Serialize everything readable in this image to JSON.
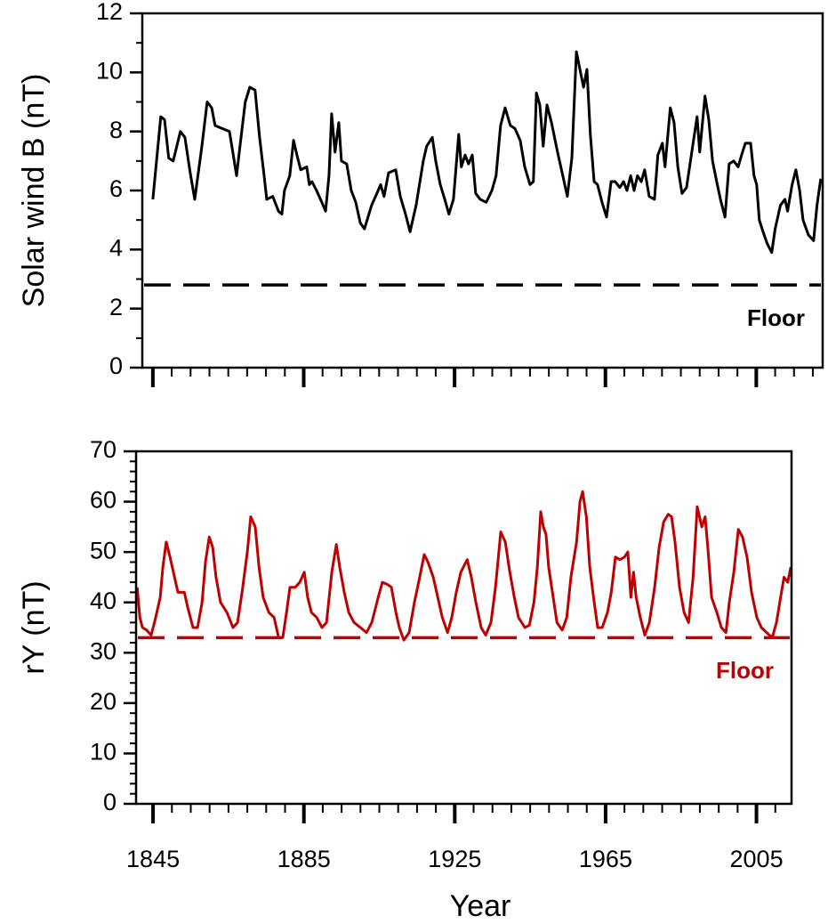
{
  "chart_data": [
    {
      "type": "line",
      "ylabel": "Solar wind B (nT)",
      "color": "#000000",
      "xlim": [
        1842.2,
        2022.6
      ],
      "xticks": [
        1845,
        1885,
        1925,
        1965,
        2005
      ],
      "xticklabels": false,
      "xminor_step": 5,
      "ylim": [
        0,
        12
      ],
      "yticks": [
        0,
        2,
        4,
        6,
        8,
        10,
        12
      ],
      "yminor_step": 1,
      "hline": {
        "value": 2.8,
        "label": "Floor",
        "color": "#000000"
      },
      "x": [
        1845.0,
        1847.1,
        1848.1,
        1849.2,
        1850.4,
        1852.3,
        1853.5,
        1854.9,
        1856.1,
        1858.0,
        1859.4,
        1860.6,
        1861.5,
        1863.4,
        1865.3,
        1866.2,
        1867.2,
        1868.1,
        1869.5,
        1870.7,
        1872.1,
        1873.3,
        1874.5,
        1875.2,
        1876.8,
        1878.3,
        1879.2,
        1879.9,
        1881.3,
        1882.3,
        1883.2,
        1884.2,
        1885.8,
        1886.5,
        1887.2,
        1888.4,
        1889.8,
        1890.8,
        1891.7,
        1892.4,
        1893.3,
        1894.3,
        1895.0,
        1896.4,
        1897.6,
        1898.8,
        1900.0,
        1901.1,
        1903.0,
        1904.4,
        1905.4,
        1906.3,
        1907.5,
        1909.4,
        1910.6,
        1912.0,
        1913.2,
        1914.8,
        1916.7,
        1917.6,
        1919.1,
        1920.0,
        1921.2,
        1922.4,
        1923.5,
        1924.7,
        1926.1,
        1926.8,
        1927.8,
        1928.7,
        1929.7,
        1930.6,
        1931.8,
        1933.4,
        1934.9,
        1936.0,
        1937.2,
        1938.4,
        1939.8,
        1941.0,
        1942.4,
        1943.6,
        1945.0,
        1945.9,
        1946.7,
        1947.6,
        1948.5,
        1949.5,
        1950.7,
        1952.3,
        1953.7,
        1954.9,
        1956.1,
        1957.3,
        1958.4,
        1959.2,
        1960.1,
        1961.0,
        1962.0,
        1962.9,
        1964.1,
        1965.3,
        1966.5,
        1967.6,
        1968.8,
        1969.8,
        1970.7,
        1971.7,
        1972.6,
        1973.5,
        1974.5,
        1975.4,
        1976.6,
        1978.0,
        1978.9,
        1980.1,
        1980.8,
        1982.2,
        1983.2,
        1984.2,
        1985.3,
        1986.5,
        1987.9,
        1989.3,
        1990.0,
        1991.4,
        1992.4,
        1993.4,
        1994.5,
        1995.5,
        1996.7,
        1997.8,
        1999.0,
        2000.2,
        2001.1,
        2002.1,
        2003.5,
        2004.4,
        2005.1,
        2005.8,
        2006.8,
        2007.9,
        2009.1,
        2010.0,
        2011.4,
        2012.6,
        2013.3,
        2014.5,
        2015.5,
        2016.5,
        2017.4,
        2018.8,
        2020.2,
        2021.1,
        2022.1
      ],
      "values": [
        5.7,
        8.5,
        8.4,
        7.1,
        7.0,
        8.0,
        7.8,
        6.6,
        5.7,
        7.5,
        9.0,
        8.8,
        8.2,
        8.1,
        8.0,
        7.3,
        6.5,
        7.5,
        9.0,
        9.5,
        9.4,
        7.8,
        6.5,
        5.7,
        5.8,
        5.3,
        5.2,
        6.0,
        6.5,
        7.7,
        7.2,
        6.7,
        6.8,
        6.2,
        6.3,
        6.0,
        5.6,
        5.3,
        6.5,
        8.6,
        7.3,
        8.3,
        7.0,
        6.9,
        6.0,
        5.6,
        4.9,
        4.7,
        5.5,
        5.9,
        6.2,
        5.8,
        6.6,
        6.7,
        5.8,
        5.2,
        4.6,
        5.5,
        7.0,
        7.5,
        7.8,
        7.0,
        6.2,
        5.7,
        5.2,
        5.7,
        7.9,
        6.8,
        7.2,
        6.9,
        7.2,
        5.9,
        5.7,
        5.6,
        6.0,
        6.5,
        8.2,
        8.8,
        8.2,
        8.1,
        7.7,
        6.8,
        6.2,
        6.3,
        9.3,
        8.9,
        7.5,
        8.9,
        8.3,
        7.3,
        6.5,
        5.8,
        7.1,
        10.7,
        10.0,
        9.5,
        10.1,
        7.9,
        6.3,
        6.2,
        5.6,
        5.1,
        6.3,
        6.3,
        6.1,
        6.3,
        6.0,
        6.5,
        6.0,
        6.5,
        6.3,
        6.7,
        5.8,
        5.7,
        7.2,
        7.6,
        6.8,
        8.8,
        8.3,
        6.8,
        5.9,
        6.1,
        7.3,
        8.5,
        7.3,
        9.2,
        8.4,
        7.0,
        6.3,
        5.7,
        5.1,
        6.9,
        7.0,
        6.8,
        7.2,
        7.6,
        7.6,
        6.5,
        6.2,
        5.0,
        4.6,
        4.2,
        3.9,
        4.7,
        5.5,
        5.7,
        5.3,
        6.2,
        6.7,
        6.0,
        5.0,
        4.5,
        4.3,
        5.5,
        6.4
      ]
    },
    {
      "type": "line",
      "ylabel": "rY (nT)",
      "xlabel": "Year",
      "color": "#c00000",
      "xlim": [
        1840.5,
        2014.3
      ],
      "xticks": [
        1845,
        1885,
        1925,
        1965,
        2005
      ],
      "xticklabels": true,
      "xminor_step": 5,
      "ylim": [
        0,
        70
      ],
      "yticks": [
        0,
        10,
        20,
        30,
        40,
        50,
        60,
        70
      ],
      "yminor_step": 2,
      "hline": {
        "value": 33,
        "label": "Floor",
        "color": "#c00000"
      },
      "x": [
        1840.8,
        1841.5,
        1842.2,
        1843.3,
        1844.5,
        1845.7,
        1846.9,
        1847.6,
        1848.5,
        1849.5,
        1850.4,
        1851.6,
        1853.3,
        1854.2,
        1855.6,
        1856.8,
        1858.0,
        1858.9,
        1859.9,
        1860.8,
        1861.7,
        1862.9,
        1864.6,
        1866.2,
        1867.4,
        1868.6,
        1870.0,
        1870.9,
        1872.1,
        1873.1,
        1874.2,
        1875.7,
        1877.1,
        1878.3,
        1879.4,
        1880.4,
        1881.3,
        1882.7,
        1883.9,
        1885.1,
        1886.0,
        1887.0,
        1888.4,
        1889.8,
        1891.0,
        1892.4,
        1893.6,
        1894.5,
        1895.7,
        1896.9,
        1898.3,
        1900.0,
        1901.6,
        1903.0,
        1904.7,
        1905.8,
        1907.3,
        1908.2,
        1909.4,
        1910.3,
        1911.5,
        1912.9,
        1914.3,
        1915.7,
        1916.9,
        1917.9,
        1919.3,
        1920.5,
        1921.7,
        1923.1,
        1924.2,
        1925.4,
        1926.6,
        1928.3,
        1929.4,
        1930.6,
        1932.0,
        1933.2,
        1934.6,
        1935.8,
        1937.2,
        1938.4,
        1939.6,
        1940.8,
        1941.9,
        1943.6,
        1944.8,
        1946.0,
        1946.9,
        1947.8,
        1948.5,
        1949.2,
        1949.9,
        1950.9,
        1952.1,
        1953.5,
        1954.7,
        1955.8,
        1957.3,
        1958.2,
        1958.9,
        1959.9,
        1960.8,
        1961.8,
        1962.9,
        1964.1,
        1965.5,
        1966.5,
        1967.6,
        1968.8,
        1970.0,
        1970.9,
        1971.7,
        1972.4,
        1973.1,
        1974.2,
        1975.4,
        1976.6,
        1978.0,
        1979.2,
        1980.4,
        1981.6,
        1982.5,
        1983.4,
        1984.6,
        1985.8,
        1987.0,
        1988.2,
        1989.3,
        1990.5,
        1991.4,
        1992.2,
        1993.1,
        1994.5,
        1995.7,
        1996.9,
        1997.8,
        1999.0,
        2000.2,
        2001.3,
        2002.5,
        2003.7,
        2005.1,
        2006.3,
        2007.7,
        2009.2,
        2010.3,
        2011.4,
        2012.3,
        2013.3,
        2014.1
      ],
      "values": [
        43,
        37,
        35,
        34.5,
        33.5,
        37,
        41,
        47,
        52,
        49,
        46,
        42,
        42,
        39,
        35,
        35,
        40,
        48,
        53,
        51,
        45,
        40,
        38,
        35,
        36,
        42,
        50,
        57,
        55,
        47,
        41,
        38,
        37,
        33,
        33,
        38,
        43,
        43,
        44,
        46,
        41,
        38,
        37,
        35,
        36,
        46,
        51.5,
        47,
        42,
        38,
        36,
        35,
        34,
        36,
        41,
        44,
        43.5,
        43,
        38,
        35,
        32.5,
        34,
        40,
        45,
        49.5,
        48,
        45,
        41,
        37,
        34,
        37,
        42,
        46,
        48.5,
        45,
        40,
        35,
        33.5,
        36,
        43,
        54,
        52,
        46,
        41,
        37,
        35,
        35.5,
        40,
        47,
        58,
        55,
        53.5,
        47,
        42,
        36,
        34.5,
        37,
        45,
        52,
        60,
        62,
        57,
        47,
        41,
        35,
        35,
        38,
        42,
        49,
        48.5,
        49,
        50,
        41,
        46,
        41,
        37,
        33.5,
        36,
        43,
        51,
        56,
        57.5,
        57,
        52,
        43,
        38,
        36,
        45,
        59,
        55,
        57,
        50,
        41,
        38,
        35,
        34,
        40,
        46,
        54.5,
        53,
        49,
        42,
        37,
        35,
        34,
        33,
        36,
        41,
        45,
        44,
        47
      ]
    }
  ]
}
